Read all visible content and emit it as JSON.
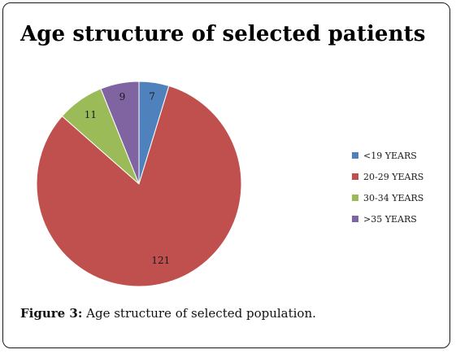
{
  "chart_data": {
    "type": "pie",
    "title": "Age structure of selected patients",
    "categories": [
      "<19 YEARS",
      "20-29 YEARS",
      "30-34 YEARS",
      ">35 YEARS"
    ],
    "values": [
      7,
      121,
      11,
      9
    ],
    "data_labels": [
      "7",
      "121",
      "11",
      "9"
    ],
    "colors": [
      "#4f81bd",
      "#c0504d",
      "#9bbb59",
      "#8064a2"
    ],
    "legend_position": "right",
    "start_angle": "12 o'clock, clockwise"
  },
  "caption": {
    "label": "Figure 3:",
    "text": " Age structure of selected population."
  }
}
